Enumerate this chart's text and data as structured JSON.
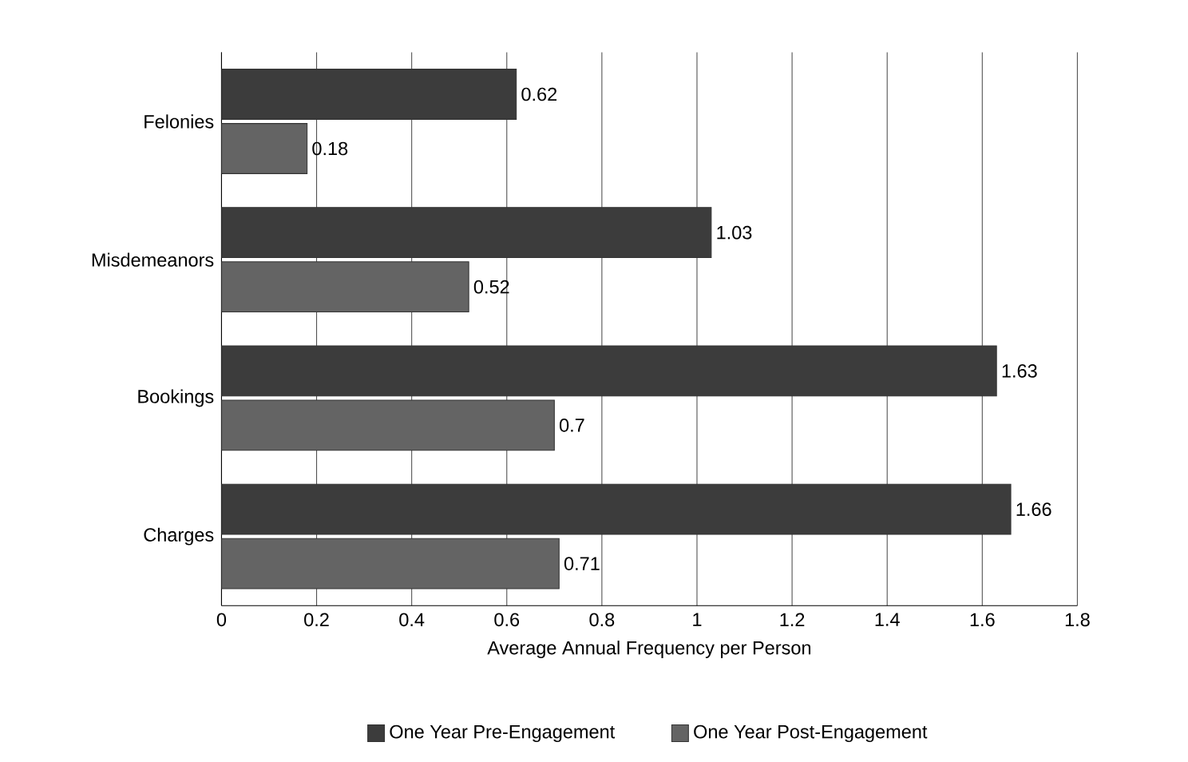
{
  "chart_data": {
    "type": "bar",
    "orientation": "horizontal",
    "xlabel": "Average Annual Frequency per Person",
    "categories": [
      "Felonies",
      "Misdemeanors",
      "Bookings",
      "Charges"
    ],
    "series": [
      {
        "name": "One Year Pre-Engagement",
        "color": "#3c3c3c",
        "values": [
          0.62,
          1.03,
          1.63,
          1.66
        ]
      },
      {
        "name": "One Year Post-Engagement",
        "color": "#646464",
        "values": [
          0.18,
          0.52,
          0.7,
          0.71
        ]
      }
    ],
    "xlim": [
      0,
      1.8
    ],
    "xticks": [
      0,
      0.2,
      0.4,
      0.6,
      0.8,
      1,
      1.2,
      1.4,
      1.6,
      1.8
    ],
    "grid": "x",
    "legend": "bottom",
    "data_labels": true
  }
}
